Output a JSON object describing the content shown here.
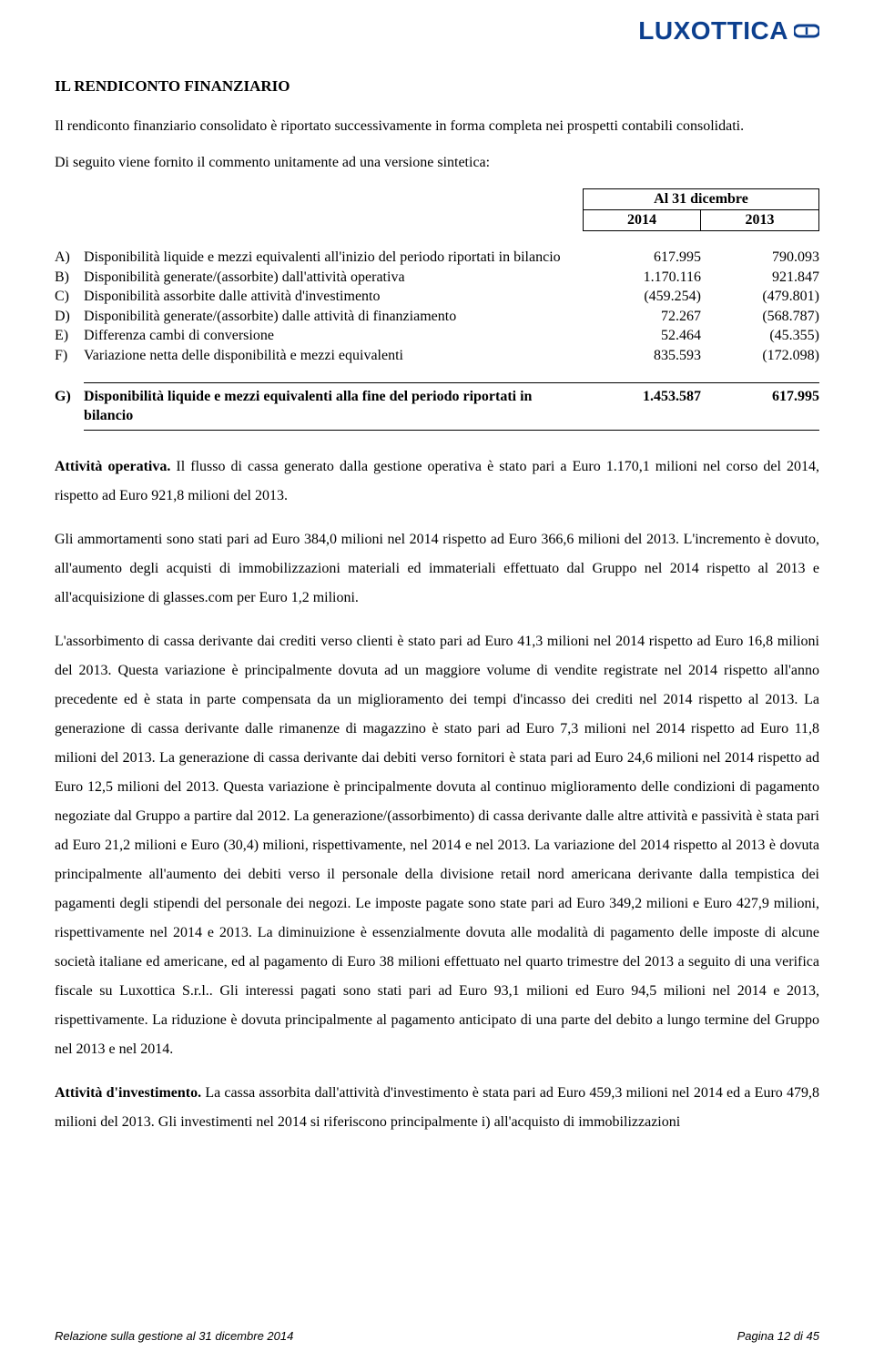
{
  "logo": {
    "text": "LUXOTTICA",
    "color": "#0c3f8e"
  },
  "section_title": "IL RENDICONTO FINANZIARIO",
  "intro1": "Il rendiconto finanziario consolidato è riportato successivamente in forma completa nei prospetti contabili consolidati.",
  "intro2": "Di seguito viene fornito il commento unitamente ad una versione sintetica:",
  "table": {
    "header_title": "Al 31 dicembre",
    "year1": "2014",
    "year2": "2013",
    "rows": [
      {
        "letter": "A)",
        "desc": "Disponibilità liquide e mezzi equivalenti all'inizio del periodo riportati in bilancio",
        "v1": "617.995",
        "v2": "790.093"
      },
      {
        "letter": "B)",
        "desc": "Disponibilità generate/(assorbite) dall'attività operativa",
        "v1": "1.170.116",
        "v2": "921.847"
      },
      {
        "letter": "C)",
        "desc": "Disponibilità assorbite dalle attività d'investimento",
        "v1": "(459.254)",
        "v2": "(479.801)"
      },
      {
        "letter": "D)",
        "desc": "Disponibilità generate/(assorbite) dalle attività di finanziamento",
        "v1": "72.267",
        "v2": "(568.787)"
      },
      {
        "letter": "E)",
        "desc": "Differenza cambi di conversione",
        "v1": "52.464",
        "v2": "(45.355)"
      },
      {
        "letter": "F)",
        "desc": "Variazione netta delle disponibilità e mezzi equivalenti",
        "v1": "835.593",
        "v2": "(172.098)"
      }
    ],
    "summary": {
      "letter": "G)",
      "desc": "Disponibilità liquide e mezzi equivalenti alla fine del periodo riportati in bilancio",
      "v1": "1.453.587",
      "v2": "617.995"
    }
  },
  "paragraphs": {
    "p1_lead": "Attività operativa.",
    "p1_rest": " Il flusso di cassa generato dalla gestione operativa è stato pari a Euro 1.170,1 milioni nel corso del 2014, rispetto ad Euro 921,8 milioni del 2013.",
    "p2": "Gli ammortamenti sono stati pari ad Euro 384,0 milioni nel 2014 rispetto ad Euro 366,6 milioni del 2013. L'incremento è dovuto, all'aumento degli acquisti di immobilizzazioni materiali ed immateriali effettuato dal Gruppo nel 2014 rispetto al 2013 e all'acquisizione di glasses.com per Euro 1,2 milioni.",
    "p3": "L'assorbimento di cassa derivante dai crediti verso clienti è stato pari ad Euro 41,3 milioni nel 2014 rispetto ad Euro 16,8 milioni del 2013. Questa variazione è principalmente dovuta ad un maggiore volume di vendite registrate nel 2014 rispetto all'anno precedente ed è stata in parte compensata da un miglioramento dei tempi d'incasso dei crediti nel 2014 rispetto al 2013. La generazione di cassa derivante dalle rimanenze di magazzino è stato pari ad Euro 7,3 milioni nel 2014 rispetto ad Euro 11,8 milioni del 2013. La generazione di cassa derivante dai debiti verso fornitori è stata pari ad Euro 24,6 milioni nel 2014 rispetto ad Euro 12,5 milioni del 2013. Questa variazione è principalmente dovuta al continuo miglioramento delle condizioni di pagamento negoziate dal Gruppo a partire dal 2012. La generazione/(assorbimento) di cassa derivante dalle altre attività e passività è stata pari ad Euro 21,2  milioni e Euro (30,4) milioni, rispettivamente, nel 2014 e nel 2013. La variazione del 2014 rispetto al 2013 è dovuta principalmente all'aumento dei debiti verso il personale della divisione retail nord americana derivante dalla tempistica dei pagamenti degli stipendi del personale dei negozi. Le imposte pagate sono state pari ad Euro 349,2 milioni e Euro 427,9 milioni, rispettivamente nel 2014 e 2013. La diminuizione è essenzialmente dovuta alle modalità di pagamento delle imposte di alcune società italiane ed americane, ed al pagamento di Euro 38 milioni effettuato nel quarto trimestre del 2013 a seguito di una verifica fiscale su Luxottica S.r.l.. Gli interessi pagati sono stati pari ad Euro 93,1 milioni ed Euro 94,5 milioni nel 2014 e 2013, rispettivamente. La riduzione è dovuta principalmente al pagamento anticipato di una parte del debito a lungo termine del Gruppo nel 2013 e nel 2014.",
    "p4_lead": "Attività d'investimento.",
    "p4_rest": " La cassa assorbita dall'attività d'investimento è stata pari ad Euro 459,3 milioni nel 2014 ed a Euro 479,8 milioni del 2013. Gli investimenti nel 2014 si riferiscono principalmente i) all'acquisto di immobilizzazioni"
  },
  "footer": {
    "left": "Relazione sulla gestione al 31 dicembre 2014",
    "right": "Pagina 12 di 45"
  }
}
